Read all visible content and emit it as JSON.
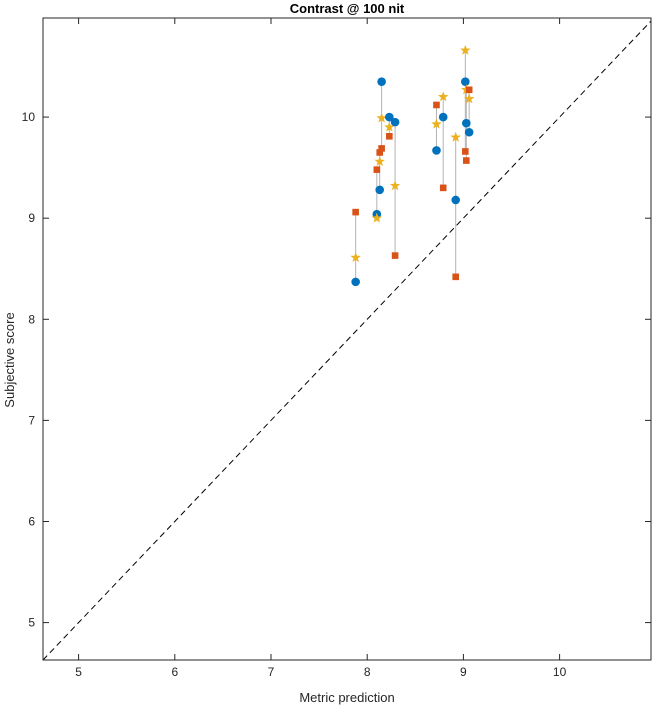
{
  "chart_data": {
    "type": "scatter",
    "title": "Contrast @ 100 nit",
    "xlabel": "Metric prediction",
    "ylabel": "Subjective score",
    "xlim": [
      4.63,
      10.95
    ],
    "ylim": [
      4.63,
      10.98
    ],
    "xticks": [
      5,
      6,
      7,
      8,
      9,
      10
    ],
    "yticks": [
      5,
      6,
      7,
      8,
      9,
      10
    ],
    "grid": false,
    "identity_line": true,
    "colors": {
      "circle": "#0072BD",
      "square": "#D95319",
      "star": "#EDB120",
      "connector": "#b3b3b3",
      "identity": "#000000"
    },
    "groups": [
      {
        "x": 7.88,
        "points": [
          {
            "y": 8.37,
            "marker": "circle"
          },
          {
            "y": 9.06,
            "marker": "square"
          },
          {
            "y": 8.61,
            "marker": "star"
          }
        ]
      },
      {
        "x": 8.1,
        "points": [
          {
            "y": 9.04,
            "marker": "circle"
          },
          {
            "y": 9.48,
            "marker": "square"
          },
          {
            "y": 9.0,
            "marker": "star"
          }
        ]
      },
      {
        "x": 8.13,
        "points": [
          {
            "y": 9.28,
            "marker": "circle"
          },
          {
            "y": 9.65,
            "marker": "square"
          },
          {
            "y": 9.56,
            "marker": "star"
          }
        ]
      },
      {
        "x": 8.15,
        "points": [
          {
            "y": 10.35,
            "marker": "circle"
          },
          {
            "y": 9.69,
            "marker": "square"
          },
          {
            "y": 9.99,
            "marker": "star"
          }
        ]
      },
      {
        "x": 8.23,
        "points": [
          {
            "y": 10.0,
            "marker": "circle"
          },
          {
            "y": 9.81,
            "marker": "square"
          },
          {
            "y": 9.9,
            "marker": "star"
          }
        ]
      },
      {
        "x": 8.29,
        "points": [
          {
            "y": 9.95,
            "marker": "circle"
          },
          {
            "y": 8.63,
            "marker": "square"
          },
          {
            "y": 9.32,
            "marker": "star"
          }
        ]
      },
      {
        "x": 8.72,
        "points": [
          {
            "y": 9.67,
            "marker": "circle"
          },
          {
            "y": 10.12,
            "marker": "square"
          },
          {
            "y": 9.93,
            "marker": "star"
          }
        ]
      },
      {
        "x": 8.79,
        "points": [
          {
            "y": 10.0,
            "marker": "circle"
          },
          {
            "y": 9.3,
            "marker": "square"
          },
          {
            "y": 10.2,
            "marker": "star"
          }
        ]
      },
      {
        "x": 8.92,
        "points": [
          {
            "y": 9.18,
            "marker": "circle"
          },
          {
            "y": 8.42,
            "marker": "square"
          },
          {
            "y": 9.8,
            "marker": "star"
          }
        ]
      },
      {
        "x": 9.02,
        "points": [
          {
            "y": 10.35,
            "marker": "circle"
          },
          {
            "y": 9.66,
            "marker": "square"
          },
          {
            "y": 10.66,
            "marker": "star"
          }
        ]
      },
      {
        "x": 9.03,
        "points": [
          {
            "y": 9.94,
            "marker": "circle"
          },
          {
            "y": 9.57,
            "marker": "square"
          },
          {
            "y": 10.27,
            "marker": "star"
          }
        ]
      },
      {
        "x": 9.06,
        "points": [
          {
            "y": 9.85,
            "marker": "circle"
          },
          {
            "y": 10.27,
            "marker": "square"
          },
          {
            "y": 10.18,
            "marker": "star"
          }
        ]
      }
    ]
  }
}
